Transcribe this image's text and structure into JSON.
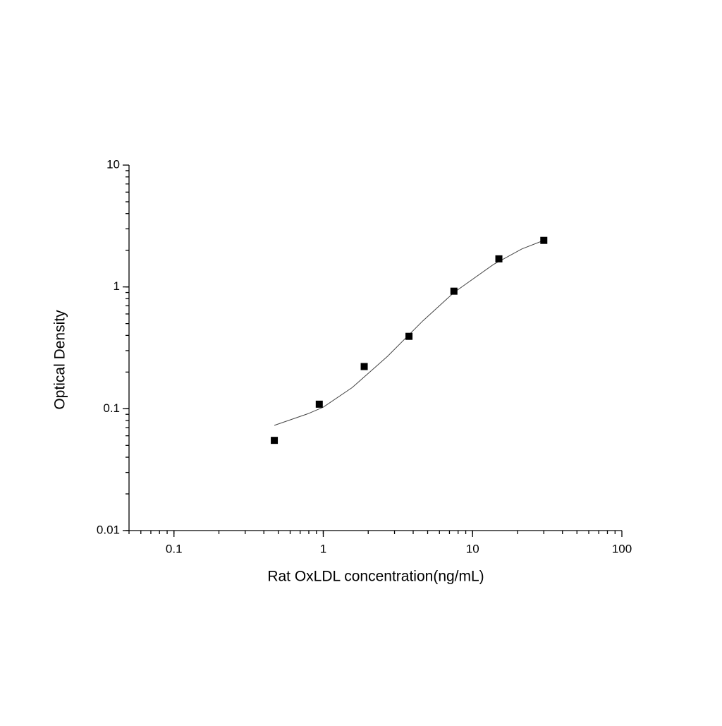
{
  "chart_data": {
    "type": "scatter",
    "x_label": "Rat OxLDL concentration(ng/mL)",
    "y_label": "Optical Density",
    "x": [
      0.47,
      0.94,
      1.88,
      3.75,
      7.5,
      15,
      30
    ],
    "values": [
      0.055,
      0.109,
      0.222,
      0.393,
      0.923,
      1.7,
      2.41
    ],
    "color": "#000000",
    "fit": {
      "x": [
        0.47,
        0.79,
        1,
        1.56,
        2.7,
        4.65,
        7.5,
        13.8,
        21.4,
        30
      ],
      "values": [
        0.073,
        0.091,
        0.103,
        0.149,
        0.27,
        0.527,
        0.9,
        1.53,
        2.05,
        2.41
      ],
      "color": "#444444"
    },
    "xlog": true,
    "ylog": true,
    "minor_ticks": true,
    "xlim": [
      0.05,
      100
    ],
    "xticks": [
      0.1,
      1,
      10,
      100
    ],
    "ylim": [
      0.01,
      10
    ],
    "yticks": [
      0.01,
      0.1,
      1,
      10
    ]
  }
}
